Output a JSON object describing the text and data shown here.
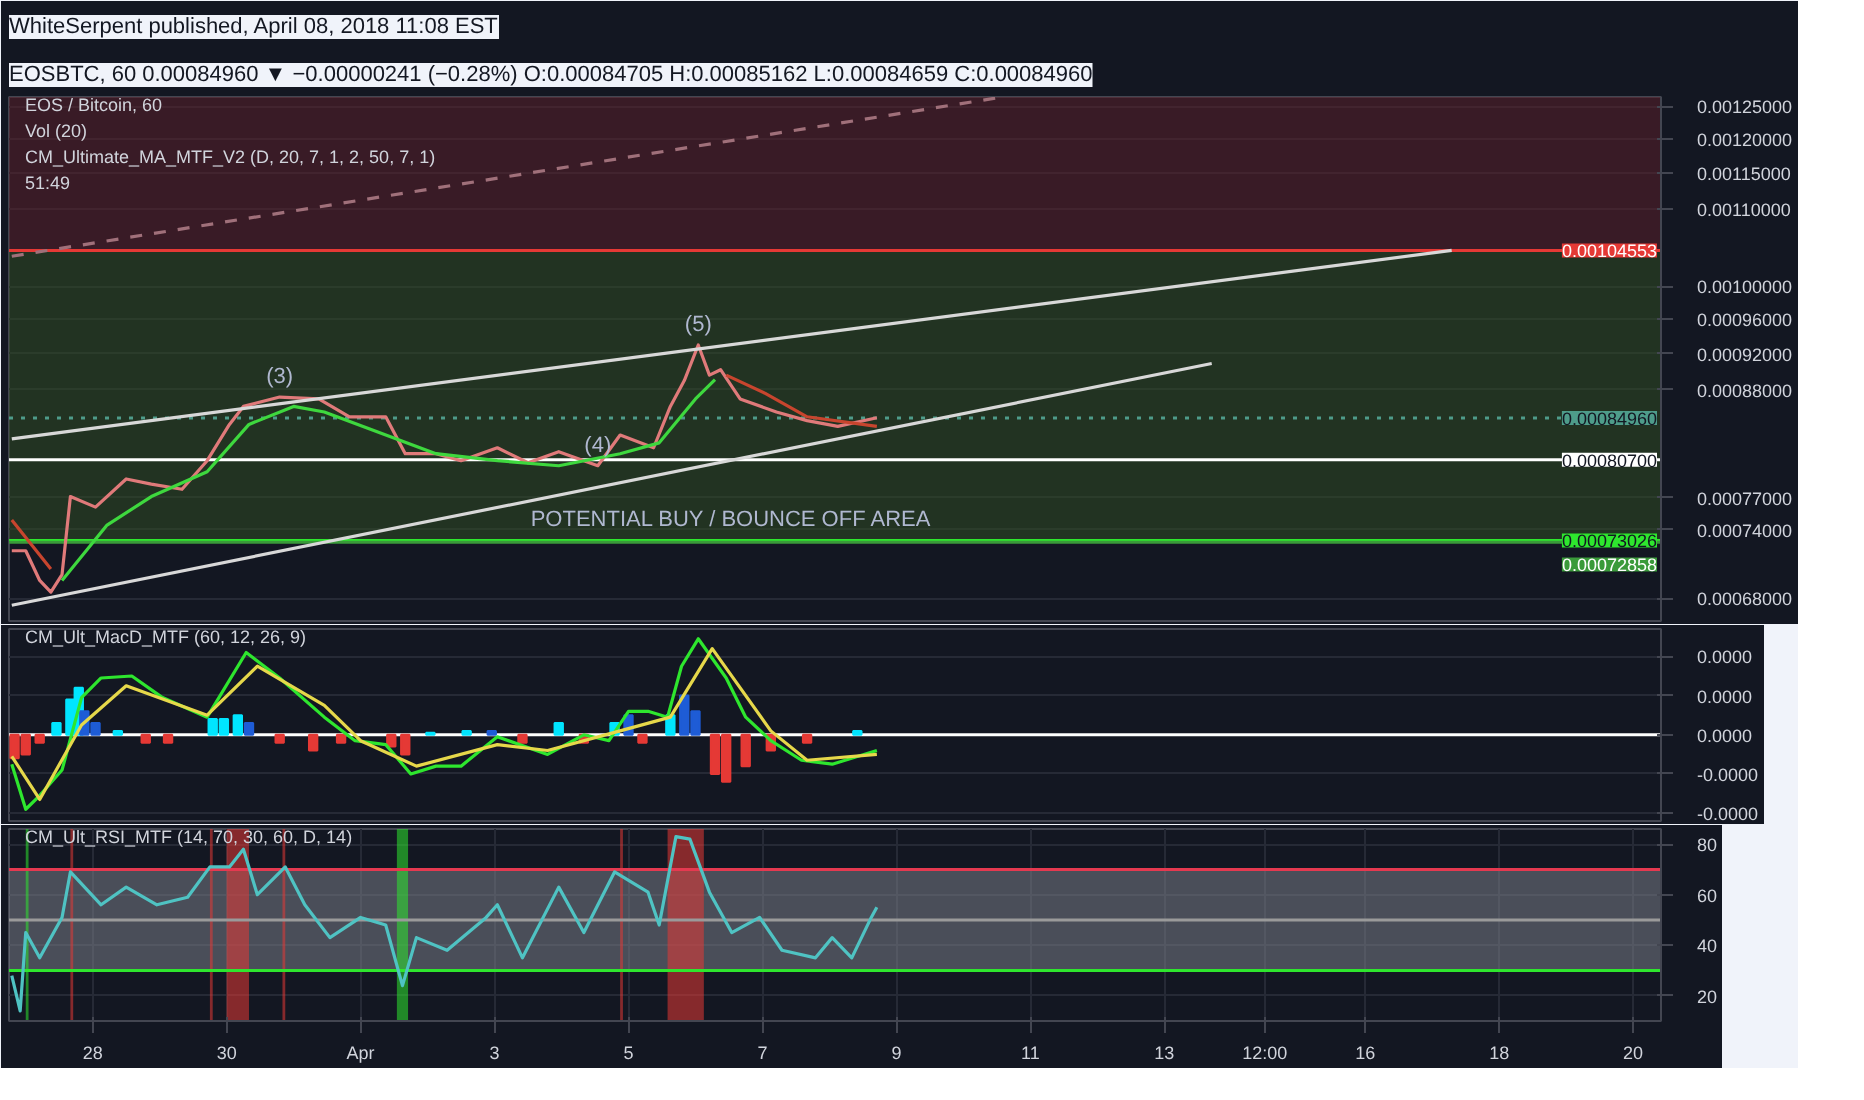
{
  "chart_data": [
    {
      "type": "line",
      "title": "WhiteSerpent published, April 08, 2018 11:08 EST",
      "subtitle": "EOSBTC, 60 0.00084960 ▼ −0.00000241 (−0.28%) O:0.00084705 H:0.00085162 L:0.00084659 C:0.00084960",
      "annotations": [
        "EOS / Bitcoin, 60",
        "Vol (20)",
        "CM_Ultimate_MA_MTF_V2 (D, 20, 7, 1, 2, 50, 7, 1)",
        "51:49",
        {
          "text": "(3)",
          "x": "2018-03-30T19:00",
          "y": 0.000872
        },
        {
          "text": "(4)",
          "x": "2018-04-04T13:00",
          "y": 0.000801
        },
        {
          "text": "(5)",
          "x": "2018-04-06T01:00",
          "y": 0.00093
        },
        {
          "text": "POTENTIAL BUY / BOUNCE OFF AREA",
          "x": "2018-04-06T13:00",
          "y": 0.00073026
        }
      ],
      "log": true,
      "grid": true,
      "tick_labels": "y",
      "xlim": [
        "2018-03-26T18:00",
        "2018-04-20T10:00"
      ],
      "ylim": [
        0.000661,
        0.001264
      ],
      "yticks": [
        {
          "value": 0.00125,
          "label": "0.00125000"
        },
        {
          "value": 0.0012,
          "label": "0.00120000"
        },
        {
          "value": 0.00115,
          "label": "0.00115000"
        },
        {
          "value": 0.0011,
          "label": "0.00110000"
        },
        {
          "value": 0.001,
          "label": "0.00100000"
        },
        {
          "value": 0.00096,
          "label": "0.00096000"
        },
        {
          "value": 0.00092,
          "label": "0.00092000"
        },
        {
          "value": 0.00088,
          "label": "0.00088000"
        },
        {
          "value": 0.00077,
          "label": "0.00077000"
        },
        {
          "value": 0.00074,
          "label": "0.00074000"
        },
        {
          "value": 0.00068,
          "label": "0.00068000"
        }
      ],
      "ref_lines": [
        {
          "axis": "y",
          "value": 0.00104553,
          "label": "0.00104553",
          "color": "#e53935"
        },
        {
          "axis": "y",
          "value": 0.0008496,
          "label": "0.00084960",
          "color": "#4e9c8a",
          "line_style": "dotted"
        },
        {
          "axis": "y",
          "value": 0.000807,
          "label": "0.00080700",
          "color": "#ffffff"
        },
        {
          "axis": "y",
          "value": 0.00073026,
          "label": "0.00073026",
          "color": "#2ee62e"
        },
        {
          "axis": "y",
          "value": 0.00072858,
          "label": "0.00072858",
          "color": "#3a9a3a"
        }
      ],
      "bands": [
        {
          "axis": "y",
          "from": 0.00104553,
          "to": 0.001264,
          "color": "#5a1f2a"
        },
        {
          "axis": "y",
          "from": 0.00072858,
          "to": 0.00104553,
          "color": "#2f4a22"
        }
      ],
      "series": [
        {
          "color": "#e07a7a",
          "x": [
            "2018-03-26T19:00",
            "2018-03-27T00:00",
            "2018-03-27T05:00",
            "2018-03-27T09:00",
            "2018-03-27T13:00",
            "2018-03-27T16:00",
            "2018-03-28T01:00",
            "2018-03-28T12:00",
            "2018-03-28T21:00",
            "2018-03-29T08:00",
            "2018-03-29T17:00",
            "2018-03-30T01:00",
            "2018-03-30T06:00",
            "2018-03-30T19:00",
            "2018-03-31T09:00",
            "2018-03-31T20:00",
            "2018-04-01T09:00",
            "2018-04-01T16:00",
            "2018-04-02T03:00",
            "2018-04-02T12:00",
            "2018-04-03T01:00",
            "2018-04-03T12:00",
            "2018-04-03T23:00",
            "2018-04-04T13:00",
            "2018-04-04T21:00",
            "2018-04-05T09:00",
            "2018-04-05T15:00",
            "2018-04-05T20:00",
            "2018-04-06T01:00",
            "2018-04-06T05:00",
            "2018-04-06T09:00",
            "2018-04-06T16:00",
            "2018-04-07T05:00",
            "2018-04-07T16:00",
            "2018-04-08T03:00",
            "2018-04-08T17:00"
          ],
          "values": [
            0.000721,
            0.000721,
            0.000695,
            0.000685,
            0.0007,
            0.000771,
            0.000761,
            0.000788,
            0.000783,
            0.000778,
            0.000806,
            0.000843,
            0.000862,
            0.000872,
            0.00087,
            0.000851,
            0.000851,
            0.000813,
            0.000813,
            0.000806,
            0.000819,
            0.000804,
            0.000815,
            0.000801,
            0.000832,
            0.000819,
            0.000862,
            0.00089,
            0.00093,
            0.000896,
            0.000902,
            0.00087,
            0.000856,
            0.000847,
            0.000841,
            0.00085
          ]
        },
        {
          "color": "#3ed83e",
          "x": [
            "2018-03-27T13:00",
            "2018-03-28T05:00",
            "2018-03-28T21:00",
            "2018-03-29T17:00",
            "2018-03-30T08:00",
            "2018-03-31T00:00",
            "2018-03-31T11:00",
            "2018-04-02T03:00",
            "2018-04-03T01:00",
            "2018-04-03T23:00",
            "2018-04-04T21:00",
            "2018-04-05T11:00",
            "2018-04-06T00:00",
            "2018-04-06T07:00"
          ],
          "values": [
            0.000695,
            0.000744,
            0.000771,
            0.000795,
            0.000843,
            0.000862,
            0.000856,
            0.000813,
            0.000806,
            0.000801,
            0.000813,
            0.000824,
            0.00087,
            0.000891
          ]
        },
        {
          "color": "#c8452e",
          "x": [
            "2018-03-26T19:00",
            "2018-03-27T09:00",
            "2018-04-01T00:00",
            "2018-04-06T11:00",
            "2018-04-07T01:00",
            "2018-04-07T16:00",
            "2018-04-08T17:00"
          ],
          "values": [
            0.000749,
            0.000705,
            null,
            0.000896,
            0.000876,
            0.000851,
            0.000841
          ]
        },
        {
          "color": "#d8d8d8",
          "x": [
            "2018-03-26T19:00",
            "2018-04-17T07:00"
          ],
          "values": [
            0.000828,
            0.00104553
          ]
        },
        {
          "color": "#d8d8d8",
          "x": [
            "2018-03-26T19:00",
            "2018-04-13T17:00"
          ],
          "values": [
            0.000674,
            0.000909
          ]
        },
        {
          "color": "#a0707a",
          "line_style": "dashed",
          "x": [
            "2018-03-26T19:00",
            "2018-04-10T14:00"
          ],
          "values": [
            0.001038,
            0.001264
          ]
        }
      ]
    },
    {
      "type": "line",
      "annotations": [
        "CM_Ult_MacD_MTF (60, 12, 26, 9)"
      ],
      "grid": true,
      "tick_labels": "y",
      "xlim": [
        "2018-03-26T18:00",
        "2018-04-20T10:00"
      ],
      "ylim": [
        -2.2e-05,
        2.7e-05
      ],
      "yticks": [
        {
          "value": 2e-05,
          "label": "0.0000"
        },
        {
          "value": 1e-05,
          "label": "0.0000"
        },
        {
          "value": 0,
          "label": "0.0000"
        },
        {
          "value": -1e-05,
          "label": "-0.0000"
        },
        {
          "value": -2e-05,
          "label": "-0.0000"
        }
      ],
      "ref_lines": [
        {
          "axis": "y",
          "value": 0,
          "color": "#ffffff"
        }
      ],
      "series": [
        {
          "type": "bar",
          "x": [
            "2018-03-26T20:00",
            "2018-03-27T00:00",
            "2018-03-27T05:00",
            "2018-03-27T11:00",
            "2018-03-27T16:00",
            "2018-03-27T19:00",
            "2018-03-27T21:00",
            "2018-03-28T01:00",
            "2018-03-28T09:00",
            "2018-03-28T19:00",
            "2018-03-29T03:00",
            "2018-03-29T19:00",
            "2018-03-29T23:00",
            "2018-03-30T04:00",
            "2018-03-30T08:00",
            "2018-03-30T19:00",
            "2018-03-31T07:00",
            "2018-03-31T17:00",
            "2018-04-01T11:00",
            "2018-04-01T16:00",
            "2018-04-02T01:00",
            "2018-04-02T14:00",
            "2018-04-02T23:00",
            "2018-04-03T10:00",
            "2018-04-03T23:00",
            "2018-04-04T08:00",
            "2018-04-04T19:00",
            "2018-04-05T00:00",
            "2018-04-05T05:00",
            "2018-04-05T15:00",
            "2018-04-05T20:00",
            "2018-04-06T00:00",
            "2018-04-06T07:00",
            "2018-04-06T11:00",
            "2018-04-06T18:00",
            "2018-04-07T03:00",
            "2018-04-07T16:00",
            "2018-04-08T10:00"
          ],
          "values": [
            -6e-06,
            -5e-06,
            -2e-06,
            3e-06,
            9e-06,
            1.2e-05,
            6e-06,
            3e-06,
            1e-06,
            -2e-06,
            -2e-06,
            4e-06,
            4e-06,
            5e-06,
            3e-06,
            -2e-06,
            -4e-06,
            -2e-06,
            -3e-06,
            -5e-06,
            5e-07,
            1e-06,
            1e-06,
            -2e-06,
            3e-06,
            -2e-06,
            3e-06,
            5e-06,
            -2e-06,
            5e-06,
            1e-05,
            6e-06,
            -1e-05,
            -1.2e-05,
            -8e-06,
            -4e-06,
            -2e-06,
            1e-06
          ],
          "colors": [
            "#e53935",
            "#e53935",
            "#e53935",
            "#00e5ff",
            "#00e5ff",
            "#00e5ff",
            "#1e5cd6",
            "#1e5cd6",
            "#00e5ff",
            "#e53935",
            "#e53935",
            "#00e5ff",
            "#00e5ff",
            "#00e5ff",
            "#1e5cd6",
            "#e53935",
            "#e53935",
            "#e53935",
            "#e53935",
            "#e53935",
            "#00e5ff",
            "#00e5ff",
            "#1e5cd6",
            "#e53935",
            "#00e5ff",
            "#e53935",
            "#00e5ff",
            "#1e5cd6",
            "#e53935",
            "#00e5ff",
            "#1e5cd6",
            "#1e5cd6",
            "#e53935",
            "#e53935",
            "#e53935",
            "#e53935",
            "#e53935",
            "#00e5ff"
          ]
        },
        {
          "color": "#2ee62e",
          "x": [
            "2018-03-26T19:00",
            "2018-03-27T00:00",
            "2018-03-27T05:00",
            "2018-03-27T13:00",
            "2018-03-27T20:00",
            "2018-03-28T03:00",
            "2018-03-28T14:00",
            "2018-03-29T01:00",
            "2018-03-29T17:00",
            "2018-03-30T07:00",
            "2018-03-30T19:00",
            "2018-03-31T11:00",
            "2018-03-31T22:00",
            "2018-04-01T09:00",
            "2018-04-01T18:00",
            "2018-04-02T03:00",
            "2018-04-02T12:00",
            "2018-04-03T01:00",
            "2018-04-03T19:00",
            "2018-04-04T08:00",
            "2018-04-04T17:00",
            "2018-04-05T00:00",
            "2018-04-05T07:00",
            "2018-04-05T14:00",
            "2018-04-05T19:00",
            "2018-04-06T01:00",
            "2018-04-06T11:00",
            "2018-04-06T18:00",
            "2018-04-07T03:00",
            "2018-04-07T14:00",
            "2018-04-08T01:00",
            "2018-04-08T17:00"
          ],
          "values": [
            -7.5e-06,
            -1.9e-05,
            -1.55e-05,
            -9e-06,
            9.5e-06,
            1.45e-05,
            1.5e-05,
            9.5e-06,
            4.5e-06,
            2.1e-05,
            1.45e-05,
            4.5e-06,
            -1.5e-06,
            -2.5e-06,
            -1e-05,
            -8e-06,
            -8e-06,
            -5e-07,
            -5e-06,
            0,
            -1.5e-06,
            6e-06,
            6e-06,
            4.5e-06,
            1.75e-05,
            2.45e-05,
            1.45e-05,
            4.5e-06,
            -1.5e-06,
            -6.5e-06,
            -7.5e-06,
            -4e-06
          ]
        },
        {
          "color": "#e6d84a",
          "x": [
            "2018-03-26T19:00",
            "2018-03-27T05:00",
            "2018-03-27T20:00",
            "2018-03-28T12:00",
            "2018-03-29T17:00",
            "2018-03-30T11:00",
            "2018-03-31T11:00",
            "2018-04-01T00:00",
            "2018-04-01T20:00",
            "2018-04-03T01:00",
            "2018-04-03T19:00",
            "2018-04-04T21:00",
            "2018-04-05T15:00",
            "2018-04-06T06:00",
            "2018-04-07T03:00",
            "2018-04-07T16:00",
            "2018-04-08T17:00"
          ],
          "values": [
            -5.5e-06,
            -1.65e-05,
            2.5e-06,
            1.25e-05,
            5e-06,
            1.75e-05,
            7.5e-06,
            -1.5e-06,
            -8e-06,
            -2.5e-06,
            -4e-06,
            1e-06,
            4.5e-06,
            2.2e-05,
            1e-06,
            -6.5e-06,
            -5e-06
          ]
        }
      ]
    },
    {
      "type": "line",
      "annotations": [
        "CM_Ult_RSI_MTF (14, 70, 30, 60, D, 14)"
      ],
      "grid": true,
      "xlim": [
        "2018-03-26T18:00",
        "2018-04-20T10:00"
      ],
      "ylim": [
        10,
        86
      ],
      "yticks": [
        20,
        40,
        60,
        80
      ],
      "xticks": [
        {
          "value": "2018-03-28",
          "label": "28"
        },
        {
          "value": "2018-03-30",
          "label": "30"
        },
        {
          "value": "2018-04-01",
          "label": "Apr"
        },
        {
          "value": "2018-04-03",
          "label": "3"
        },
        {
          "value": "2018-04-05",
          "label": "5"
        },
        {
          "value": "2018-04-07",
          "label": "7"
        },
        {
          "value": "2018-04-09",
          "label": "9"
        },
        {
          "value": "2018-04-11",
          "label": "11"
        },
        {
          "value": "2018-04-13",
          "label": "13"
        },
        {
          "value": "2018-04-14T12:00",
          "label": "12:00"
        },
        {
          "value": "2018-04-16",
          "label": "16"
        },
        {
          "value": "2018-04-18",
          "label": "18"
        },
        {
          "value": "2018-04-20",
          "label": "20"
        }
      ],
      "ref_lines": [
        {
          "axis": "y",
          "value": 70,
          "color": "#e53950"
        },
        {
          "axis": "y",
          "value": 30,
          "color": "#2ee62e"
        },
        {
          "axis": "y",
          "value": 50,
          "color": "#9a9a9a"
        }
      ],
      "bands": [
        {
          "axis": "y",
          "from": 30,
          "to": 70,
          "color": "#787b86"
        },
        {
          "axis": "x",
          "from": "2018-03-27T00:00",
          "to": "2018-03-27T01:00",
          "color": "#2ee62e"
        },
        {
          "axis": "x",
          "from": "2018-03-27T16:00",
          "to": "2018-03-27T17:00",
          "color": "#e53935"
        },
        {
          "axis": "x",
          "from": "2018-03-29T18:00",
          "to": "2018-03-29T19:00",
          "color": "#e53935"
        },
        {
          "axis": "x",
          "from": "2018-03-30T00:00",
          "to": "2018-03-30T08:00",
          "color": "#e53935"
        },
        {
          "axis": "x",
          "from": "2018-03-30T20:00",
          "to": "2018-03-30T21:00",
          "color": "#e53935"
        },
        {
          "axis": "x",
          "from": "2018-04-01T13:00",
          "to": "2018-04-01T17:00",
          "color": "#2ee62e"
        },
        {
          "axis": "x",
          "from": "2018-04-04T21:00",
          "to": "2018-04-04T22:00",
          "color": "#e53935"
        },
        {
          "axis": "x",
          "from": "2018-04-05T14:00",
          "to": "2018-04-06T03:00",
          "color": "#e53935"
        }
      ],
      "series": [
        {
          "color": "#4fc3c3",
          "x": [
            "2018-03-26T19:00",
            "2018-03-26T22:00",
            "2018-03-27T00:00",
            "2018-03-27T05:00",
            "2018-03-27T13:00",
            "2018-03-27T16:00",
            "2018-03-28T03:00",
            "2018-03-28T12:00",
            "2018-03-28T23:00",
            "2018-03-29T10:00",
            "2018-03-29T18:00",
            "2018-03-30T01:00",
            "2018-03-30T06:00",
            "2018-03-30T11:00",
            "2018-03-30T21:00",
            "2018-03-31T04:00",
            "2018-03-31T13:00",
            "2018-04-01T00:00",
            "2018-04-01T09:00",
            "2018-04-01T15:00",
            "2018-04-01T20:00",
            "2018-04-02T07:00",
            "2018-04-02T21:00",
            "2018-04-03T01:00",
            "2018-04-03T10:00",
            "2018-04-03T23:00",
            "2018-04-04T08:00",
            "2018-04-04T19:00",
            "2018-04-05T07:00",
            "2018-04-05T11:00",
            "2018-04-05T17:00",
            "2018-04-05T22:00",
            "2018-04-06T05:00",
            "2018-04-06T13:00",
            "2018-04-06T23:00",
            "2018-04-07T07:00",
            "2018-04-07T19:00",
            "2018-04-08T01:00",
            "2018-04-08T08:00",
            "2018-04-08T15:00",
            "2018-04-08T17:00"
          ],
          "values": [
            28,
            14,
            45,
            35,
            51,
            69,
            56,
            63,
            56,
            59,
            71,
            71,
            78,
            60,
            71,
            56,
            43,
            51,
            48,
            24,
            43,
            38,
            51,
            56,
            35,
            63,
            45,
            69,
            61,
            48,
            83,
            82,
            61,
            45,
            51,
            38,
            35,
            43,
            35,
            51,
            55
          ]
        }
      ]
    }
  ]
}
